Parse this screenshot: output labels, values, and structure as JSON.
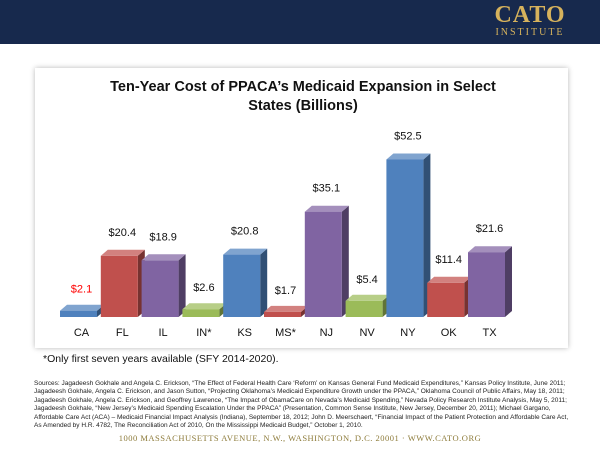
{
  "header": {
    "logo_text": "CATO",
    "logo_subtext": "INSTITUTE"
  },
  "chart_data": {
    "type": "bar",
    "title_lines": [
      "Ten-Year Cost of PPACA’s Medicaid Expansion in Select",
      "States (Billions)"
    ],
    "categories": [
      "CA",
      "FL",
      "IL",
      "IN*",
      "KS",
      "MS*",
      "NJ",
      "NV",
      "NY",
      "OK",
      "TX"
    ],
    "values": [
      2.1,
      20.4,
      18.9,
      2.6,
      20.8,
      1.7,
      35.1,
      5.4,
      52.5,
      11.4,
      21.6
    ],
    "data_labels": [
      "$2.1",
      "$20.4",
      "$18.9",
      "$2.6",
      "$20.8",
      "$1.7",
      "$35.1",
      "$5.4",
      "$52.5",
      "$11.4",
      "$21.6"
    ],
    "bar_colors": [
      "#4f81bd",
      "#c0504d",
      "#8064a2",
      "#9bbb59",
      "#4f81bd",
      "#c0504d",
      "#8064a2",
      "#9bbb59",
      "#4f81bd",
      "#c0504d",
      "#8064a2"
    ],
    "label_colors": [
      "#ff0000",
      "#111111",
      "#111111",
      "#111111",
      "#111111",
      "#111111",
      "#111111",
      "#111111",
      "#111111",
      "#111111",
      "#111111"
    ],
    "ylim": [
      0,
      55
    ],
    "xlabel": "",
    "ylabel": "",
    "grid": false,
    "style": "3d-column"
  },
  "footnote": "*Only first seven years available (SFY 2014-2020).",
  "sources": "Sources: Jagadeesh Gokhale and Angela C. Erickson, “The Effect of Federal Health Care ‘Reform’ on Kansas General Fund Medicaid Expenditures,” Kansas Policy Institute, June 2011; Jagadeesh Gokhale, Angela C. Erickson, and Jason Sutton, “Projecting Oklahoma’s Medicaid Expenditure Growth under the PPACA,” Oklahoma Council of Public Affairs, May 18, 2011; Jagadeesh Gokhale, Angela C. Erickson, and Geoffrey Lawrence, “The Impact of ObamaCare on Nevada’s Medicaid Spending,” Nevada Policy Research Institute Analysis, May 5, 2011; Jagadeesh Gokhale, “New Jersey’s Medicaid Spending Escalation Under the PPACA” (Presentation, Common Sense Institute, New Jersey, December 20, 2011); Michael Gargano, Affordable Care Act (ACA) – Medicaid Financial Impact Analysis (Indiana), September 18, 2012; John D. Meerschaert, “Financial Impact of the Patient Protection and Affordable Care Act, As Amended by H.R. 4782, The Reconciliation Act of 2010, On the Mississippi Medicaid Budget,” October 1, 2010.",
  "address": "1000 MASSACHUSETTS AVENUE, N.W., WASHINGTON, D.C. 20001 · WWW.CATO.ORG"
}
